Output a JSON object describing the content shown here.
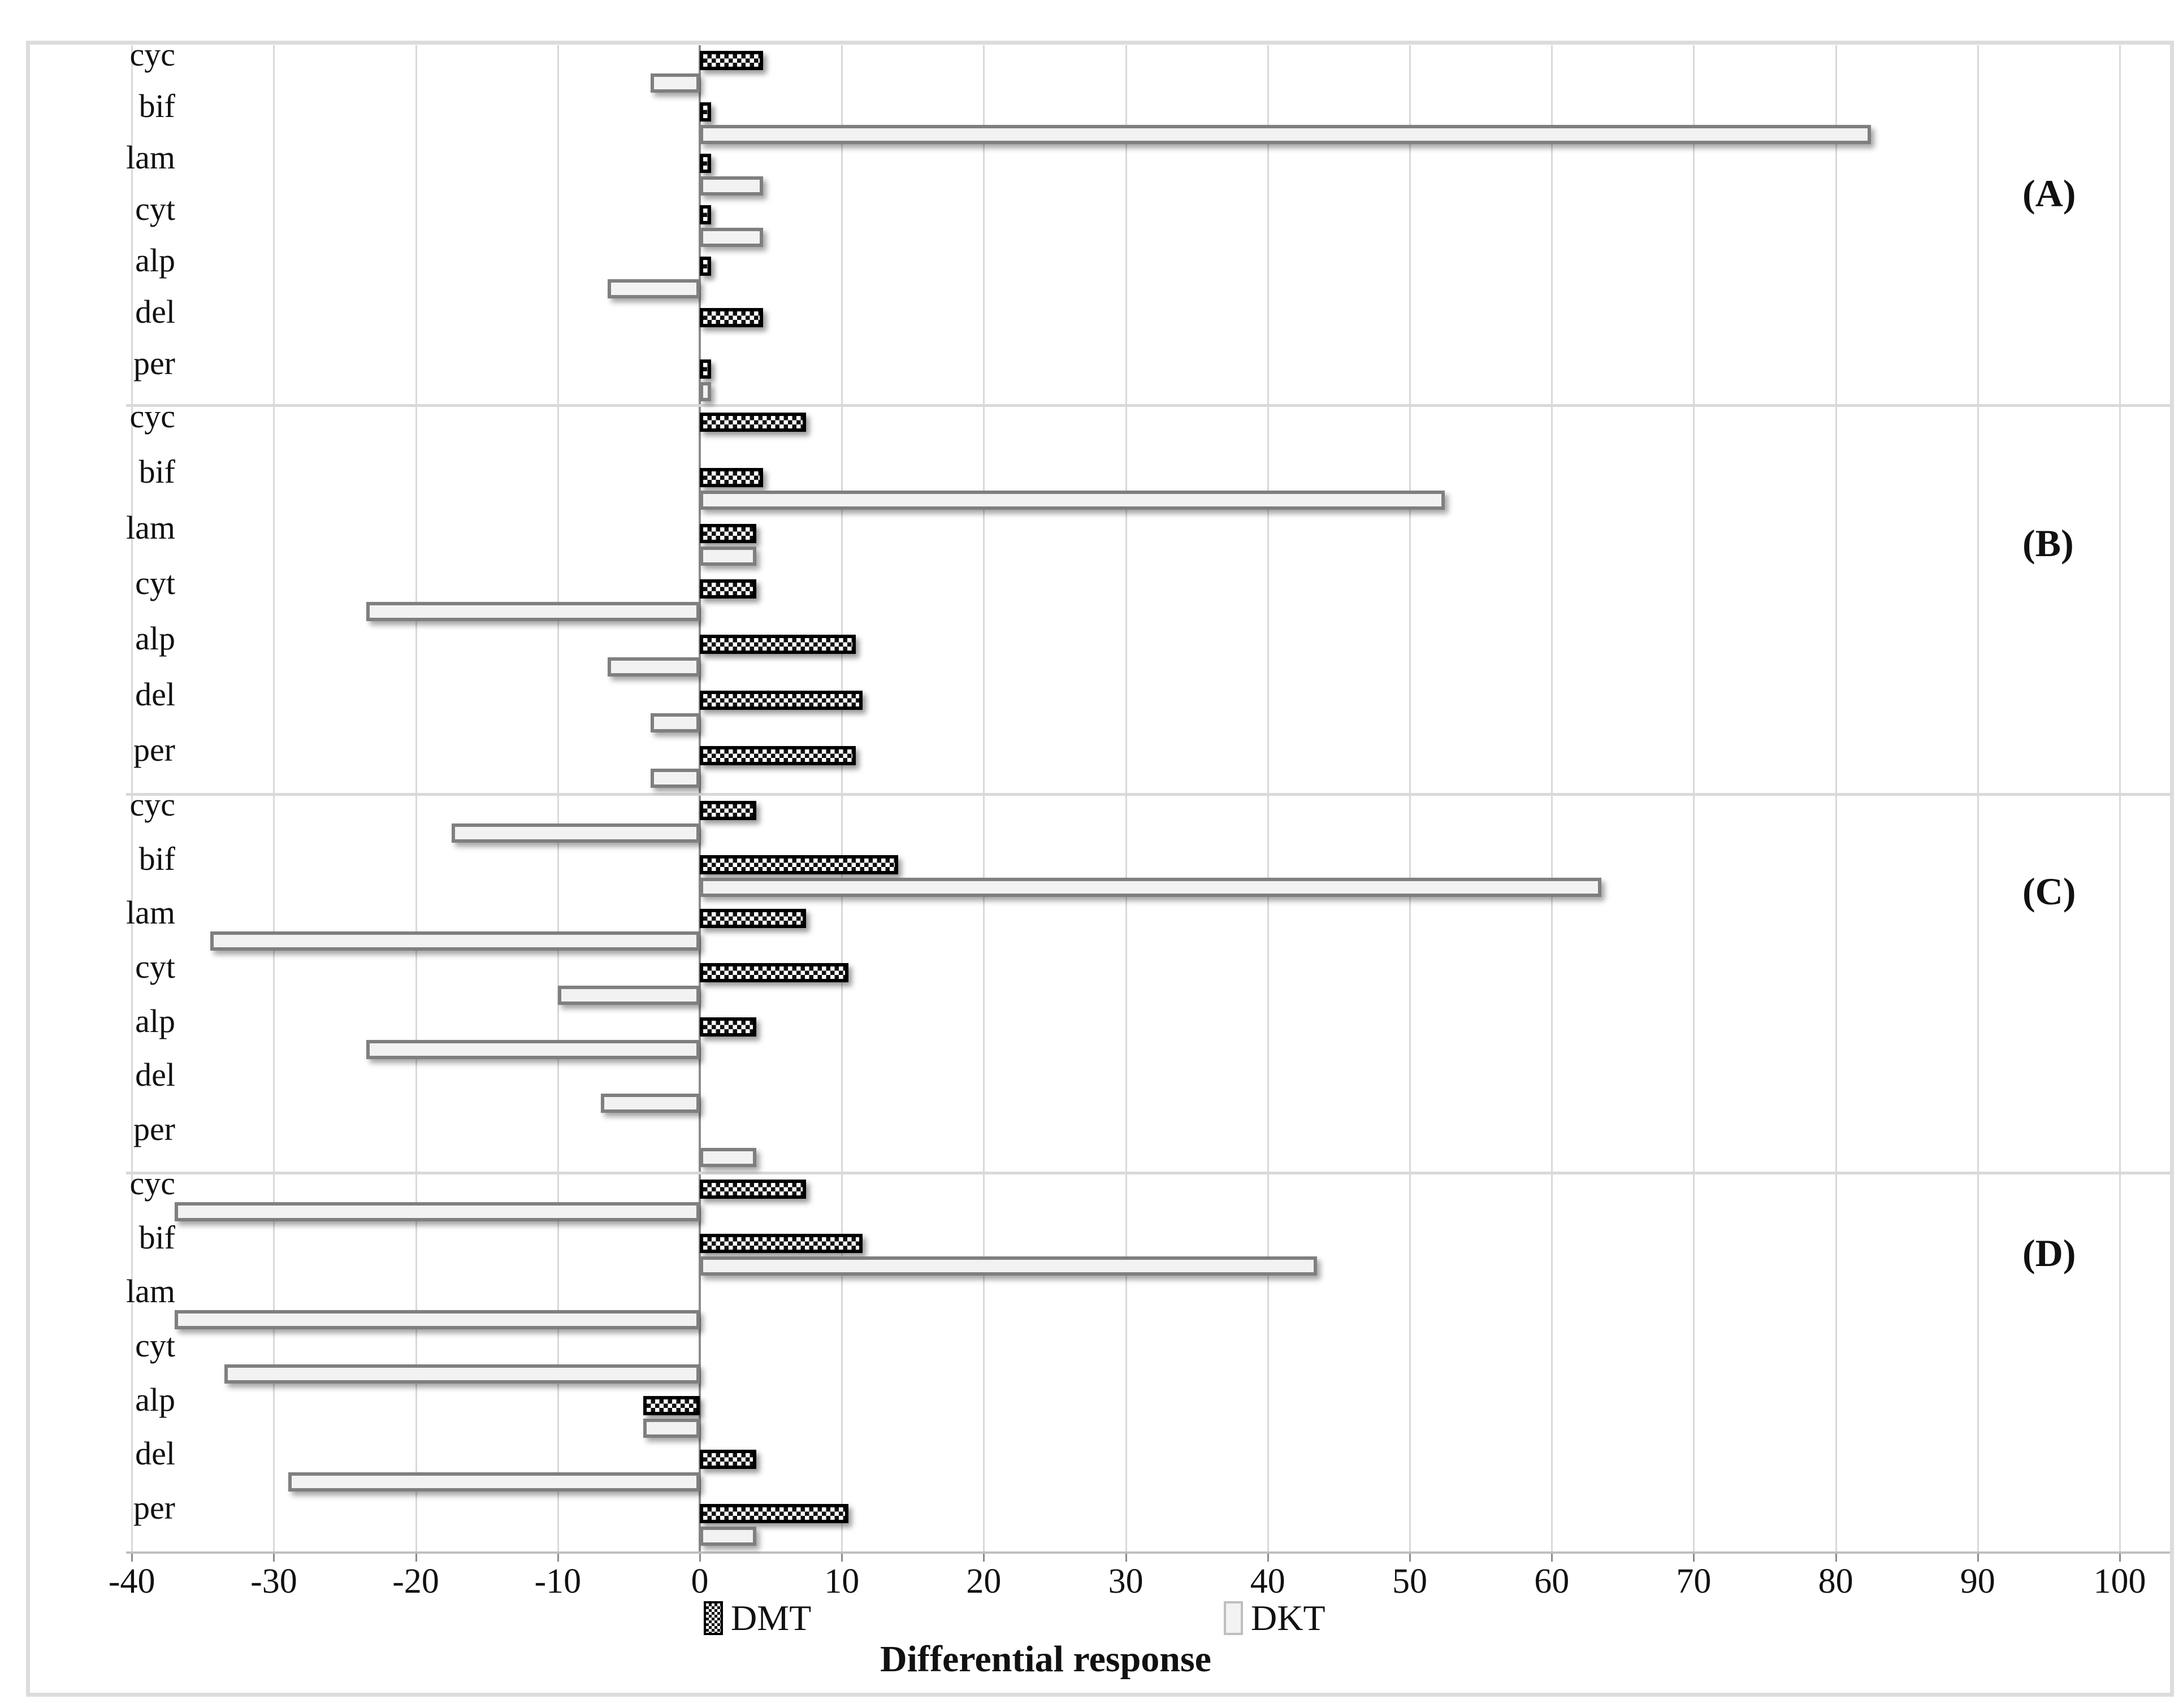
{
  "figure": {
    "xlabel": "Differential response",
    "legend": {
      "dmt_label": "DMT",
      "dkt_label": "DKT"
    }
  },
  "colors": {
    "dmt_fill": "#101010",
    "dmt_border": "#000000",
    "dkt_fill": "#f2f2f2",
    "dkt_border": "#7f7f7f",
    "gridline": "#d9d9d9",
    "zero_axis": "#8c8c8c",
    "figure_border": "#dcdcdc"
  },
  "chart_data": {
    "type": "bar",
    "orientation": "horizontal",
    "title": "",
    "xlabel": "Differential response",
    "ylabel": "",
    "xlim": [
      -40,
      100
    ],
    "x_ticks": [
      -40,
      -30,
      -20,
      -10,
      0,
      10,
      20,
      30,
      40,
      50,
      60,
      70,
      80,
      90,
      100
    ],
    "grid": true,
    "legend_position": "bottom",
    "legend_entries": [
      "DMT",
      "DKT"
    ],
    "categories_top_to_bottom": [
      "cyc",
      "bif",
      "lam",
      "cyt",
      "alp",
      "del",
      "per"
    ],
    "panels": [
      {
        "label": "(A)",
        "series": [
          {
            "name": "DMT",
            "values": [
              4,
              0.3,
              0.3,
              0.3,
              0.3,
              4,
              0.3
            ]
          },
          {
            "name": "DKT",
            "values": [
              -3,
              82,
              4,
              4,
              -6,
              0,
              0.3
            ]
          }
        ]
      },
      {
        "label": "(B)",
        "series": [
          {
            "name": "DMT",
            "values": [
              7,
              4,
              3.5,
              3.5,
              10.5,
              11,
              10.5
            ]
          },
          {
            "name": "DKT",
            "values": [
              0,
              52,
              3.5,
              -23,
              -6,
              -3,
              -3
            ]
          }
        ]
      },
      {
        "label": "(C)",
        "series": [
          {
            "name": "DMT",
            "values": [
              3.5,
              13.5,
              7,
              10,
              3.5,
              0,
              0
            ]
          },
          {
            "name": "DKT",
            "values": [
              -17,
              63,
              -34,
              -9.5,
              -23,
              -6.5,
              3.5
            ]
          }
        ]
      },
      {
        "label": "(D)",
        "series": [
          {
            "name": "DMT",
            "values": [
              7,
              11,
              0,
              0,
              -3.5,
              3.5,
              10
            ]
          },
          {
            "name": "DKT",
            "values": [
              -36.5,
              43,
              -36.5,
              -33,
              -3.5,
              -28.5,
              3.5
            ]
          }
        ]
      }
    ]
  }
}
